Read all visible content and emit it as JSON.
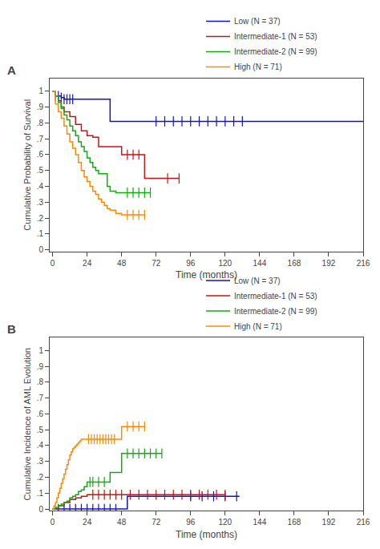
{
  "chart_data": [
    {
      "type": "step",
      "title": "A",
      "xlabel": "Time (months)",
      "ylabel": "Cumulative Probability of Survival",
      "xlim": [
        -2,
        216
      ],
      "ylim": [
        -0.01,
        1.08
      ],
      "xticks": [
        0,
        24,
        48,
        72,
        96,
        120,
        144,
        168,
        192,
        216
      ],
      "yticks": [
        0,
        {
          "value": 0.1,
          "label": ".1"
        },
        {
          "value": 0.2,
          "label": ".2"
        },
        {
          "value": 0.3,
          "label": ".3"
        },
        {
          "value": 0.4,
          "label": ".4"
        },
        {
          "value": 0.5,
          "label": ".5"
        },
        {
          "value": 0.6,
          "label": ".6"
        },
        {
          "value": 0.7,
          "label": ".7"
        },
        {
          "value": 0.8,
          "label": ".8"
        },
        {
          "value": 0.9,
          "label": ".9"
        },
        1
      ],
      "grid": false,
      "legend": "upper right",
      "series": [
        {
          "name": "Low (N = 37)",
          "color": "#1111CC",
          "x": [
            0,
            2,
            4,
            6,
            8,
            10,
            12,
            14,
            40,
            44,
            216
          ],
          "values": [
            1.0,
            0.97,
            0.97,
            0.96,
            0.95,
            0.95,
            0.95,
            0.95,
            0.81,
            0.81,
            0.81
          ],
          "censor_x": [
            2,
            4,
            6,
            8,
            10,
            12,
            14,
            72,
            78,
            84,
            90,
            96,
            102,
            108,
            114,
            120,
            126,
            132
          ],
          "censor_values": [
            0.97,
            0.97,
            0.96,
            0.95,
            0.95,
            0.95,
            0.95,
            0.81,
            0.81,
            0.81,
            0.81,
            0.81,
            0.81,
            0.81,
            0.81,
            0.81,
            0.81,
            0.81
          ]
        },
        {
          "name": "Intermediate-1 (N = 53)",
          "color": "#CC1111",
          "x": [
            0,
            2,
            4,
            6,
            8,
            12,
            16,
            20,
            24,
            28,
            32,
            36,
            40,
            48,
            52,
            64,
            68,
            72,
            80,
            88
          ],
          "values": [
            1.0,
            0.97,
            0.94,
            0.9,
            0.87,
            0.84,
            0.79,
            0.75,
            0.72,
            0.71,
            0.65,
            0.65,
            0.65,
            0.6,
            0.6,
            0.45,
            0.45,
            0.45,
            0.45,
            0.45
          ],
          "censor_x": [
            52,
            56,
            60,
            80,
            88
          ],
          "censor_values": [
            0.6,
            0.6,
            0.6,
            0.45,
            0.45
          ]
        },
        {
          "name": "Intermediate-2 (N = 99)",
          "color": "#11AA11",
          "x": [
            0,
            2,
            4,
            6,
            8,
            10,
            12,
            14,
            16,
            18,
            20,
            22,
            24,
            26,
            28,
            30,
            32,
            34,
            36,
            38,
            40,
            44,
            48,
            52,
            56,
            60,
            64,
            68
          ],
          "values": [
            1.0,
            0.97,
            0.93,
            0.89,
            0.85,
            0.82,
            0.78,
            0.75,
            0.72,
            0.68,
            0.65,
            0.62,
            0.58,
            0.55,
            0.52,
            0.5,
            0.48,
            0.48,
            0.48,
            0.4,
            0.37,
            0.36,
            0.36,
            0.36,
            0.36,
            0.36,
            0.36,
            0.36
          ],
          "censor_x": [
            52,
            56,
            60,
            64,
            68
          ],
          "censor_values": [
            0.36,
            0.36,
            0.36,
            0.36,
            0.36
          ]
        },
        {
          "name": "High (N = 71)",
          "color": "#FF8800",
          "x": [
            0,
            2,
            4,
            6,
            8,
            10,
            12,
            14,
            16,
            18,
            20,
            22,
            24,
            26,
            28,
            30,
            32,
            34,
            36,
            38,
            40,
            44,
            48,
            52,
            56,
            60,
            64
          ],
          "values": [
            1.0,
            0.92,
            0.87,
            0.83,
            0.78,
            0.73,
            0.68,
            0.64,
            0.6,
            0.55,
            0.5,
            0.46,
            0.43,
            0.4,
            0.37,
            0.35,
            0.32,
            0.3,
            0.28,
            0.26,
            0.25,
            0.23,
            0.22,
            0.22,
            0.22,
            0.22,
            0.22
          ],
          "censor_x": [
            52,
            56,
            60,
            64
          ],
          "censor_values": [
            0.22,
            0.22,
            0.22,
            0.22
          ]
        }
      ]
    },
    {
      "type": "step",
      "title": "B",
      "xlabel": "Time (months)",
      "ylabel": "Cumulative Incidence of AML Evolution",
      "xlim": [
        -2,
        216
      ],
      "ylim": [
        -0.01,
        1.08
      ],
      "xticks": [
        0,
        24,
        48,
        72,
        96,
        120,
        144,
        168,
        192,
        216
      ],
      "yticks": [
        0,
        {
          "value": 0.1,
          "label": ".1"
        },
        {
          "value": 0.2,
          "label": ".2"
        },
        {
          "value": 0.3,
          "label": ".3"
        },
        {
          "value": 0.4,
          "label": ".4"
        },
        {
          "value": 0.5,
          "label": ".5"
        },
        {
          "value": 0.6,
          "label": ".6"
        },
        {
          "value": 0.7,
          "label": ".7"
        },
        {
          "value": 0.8,
          "label": ".8"
        },
        {
          "value": 0.9,
          "label": ".9"
        },
        1
      ],
      "grid": false,
      "legend": "upper right",
      "series": [
        {
          "name": "Low (N = 37)",
          "color": "#1111CC",
          "x": [
            0,
            4,
            8,
            12,
            16,
            20,
            24,
            28,
            32,
            36,
            40,
            44,
            48,
            52,
            96,
            130
          ],
          "values": [
            0,
            0,
            0,
            0,
            0,
            0,
            0,
            0,
            0,
            0,
            0,
            0,
            0,
            0.08,
            0.08,
            0.08
          ],
          "censor_x": [
            4,
            8,
            12,
            16,
            20,
            24,
            28,
            32,
            36,
            40,
            44,
            96,
            104,
            112,
            120,
            128
          ],
          "censor_values": [
            0,
            0,
            0,
            0,
            0,
            0,
            0,
            0,
            0,
            0,
            0,
            0.08,
            0.08,
            0.08,
            0.08,
            0.08
          ]
        },
        {
          "name": "Intermediate-1 (N = 53)",
          "color": "#CC1111",
          "x": [
            0,
            4,
            8,
            12,
            16,
            20,
            24,
            28,
            32,
            36,
            40,
            44,
            48,
            56,
            60,
            80,
            90,
            100,
            110,
            120
          ],
          "values": [
            0,
            0.02,
            0.04,
            0.06,
            0.07,
            0.08,
            0.09,
            0.09,
            0.09,
            0.09,
            0.09,
            0.09,
            0.09,
            0.09,
            0.09,
            0.09,
            0.09,
            0.09,
            0.09,
            0.09
          ],
          "censor_x": [
            28,
            32,
            36,
            40,
            44,
            48,
            54,
            60,
            66,
            72,
            78,
            84,
            90,
            96,
            102,
            108,
            114,
            120
          ],
          "censor_values": [
            0.09,
            0.09,
            0.09,
            0.09,
            0.09,
            0.09,
            0.09,
            0.09,
            0.09,
            0.09,
            0.09,
            0.09,
            0.09,
            0.09,
            0.09,
            0.09,
            0.09,
            0.09
          ]
        },
        {
          "name": "Intermediate-2 (N = 99)",
          "color": "#11AA11",
          "x": [
            0,
            2,
            4,
            6,
            8,
            10,
            12,
            14,
            16,
            18,
            20,
            22,
            24,
            26,
            28,
            32,
            36,
            40,
            44,
            48,
            52,
            56,
            60,
            64,
            68,
            72,
            76
          ],
          "values": [
            0,
            0.01,
            0.02,
            0.03,
            0.04,
            0.05,
            0.07,
            0.08,
            0.09,
            0.11,
            0.12,
            0.14,
            0.17,
            0.17,
            0.17,
            0.17,
            0.17,
            0.23,
            0.23,
            0.35,
            0.35,
            0.35,
            0.35,
            0.35,
            0.35,
            0.35,
            0.35
          ],
          "censor_x": [
            26,
            28,
            32,
            36,
            52,
            56,
            60,
            64,
            68,
            72,
            76
          ],
          "censor_values": [
            0.17,
            0.17,
            0.17,
            0.17,
            0.35,
            0.35,
            0.35,
            0.35,
            0.35,
            0.35,
            0.35
          ]
        },
        {
          "name": "High (N = 71)",
          "color": "#FF8800",
          "x": [
            0,
            1,
            2,
            3,
            4,
            5,
            6,
            7,
            8,
            9,
            10,
            11,
            12,
            13,
            14,
            15,
            16,
            17,
            18,
            19,
            20,
            21,
            22,
            23,
            24,
            28,
            32,
            36,
            40,
            44,
            48,
            52,
            56,
            60,
            64
          ],
          "values": [
            0,
            0.02,
            0.04,
            0.07,
            0.1,
            0.13,
            0.16,
            0.19,
            0.22,
            0.25,
            0.28,
            0.31,
            0.34,
            0.36,
            0.38,
            0.39,
            0.4,
            0.41,
            0.42,
            0.43,
            0.44,
            0.44,
            0.44,
            0.44,
            0.44,
            0.44,
            0.44,
            0.44,
            0.44,
            0.44,
            0.52,
            0.52,
            0.52,
            0.52,
            0.52
          ],
          "censor_x": [
            25,
            27,
            29,
            31,
            33,
            35,
            37,
            39,
            41,
            43,
            52,
            56,
            60,
            64
          ],
          "censor_values": [
            0.44,
            0.44,
            0.44,
            0.44,
            0.44,
            0.44,
            0.44,
            0.44,
            0.44,
            0.44,
            0.52,
            0.52,
            0.52,
            0.52
          ]
        }
      ]
    }
  ]
}
